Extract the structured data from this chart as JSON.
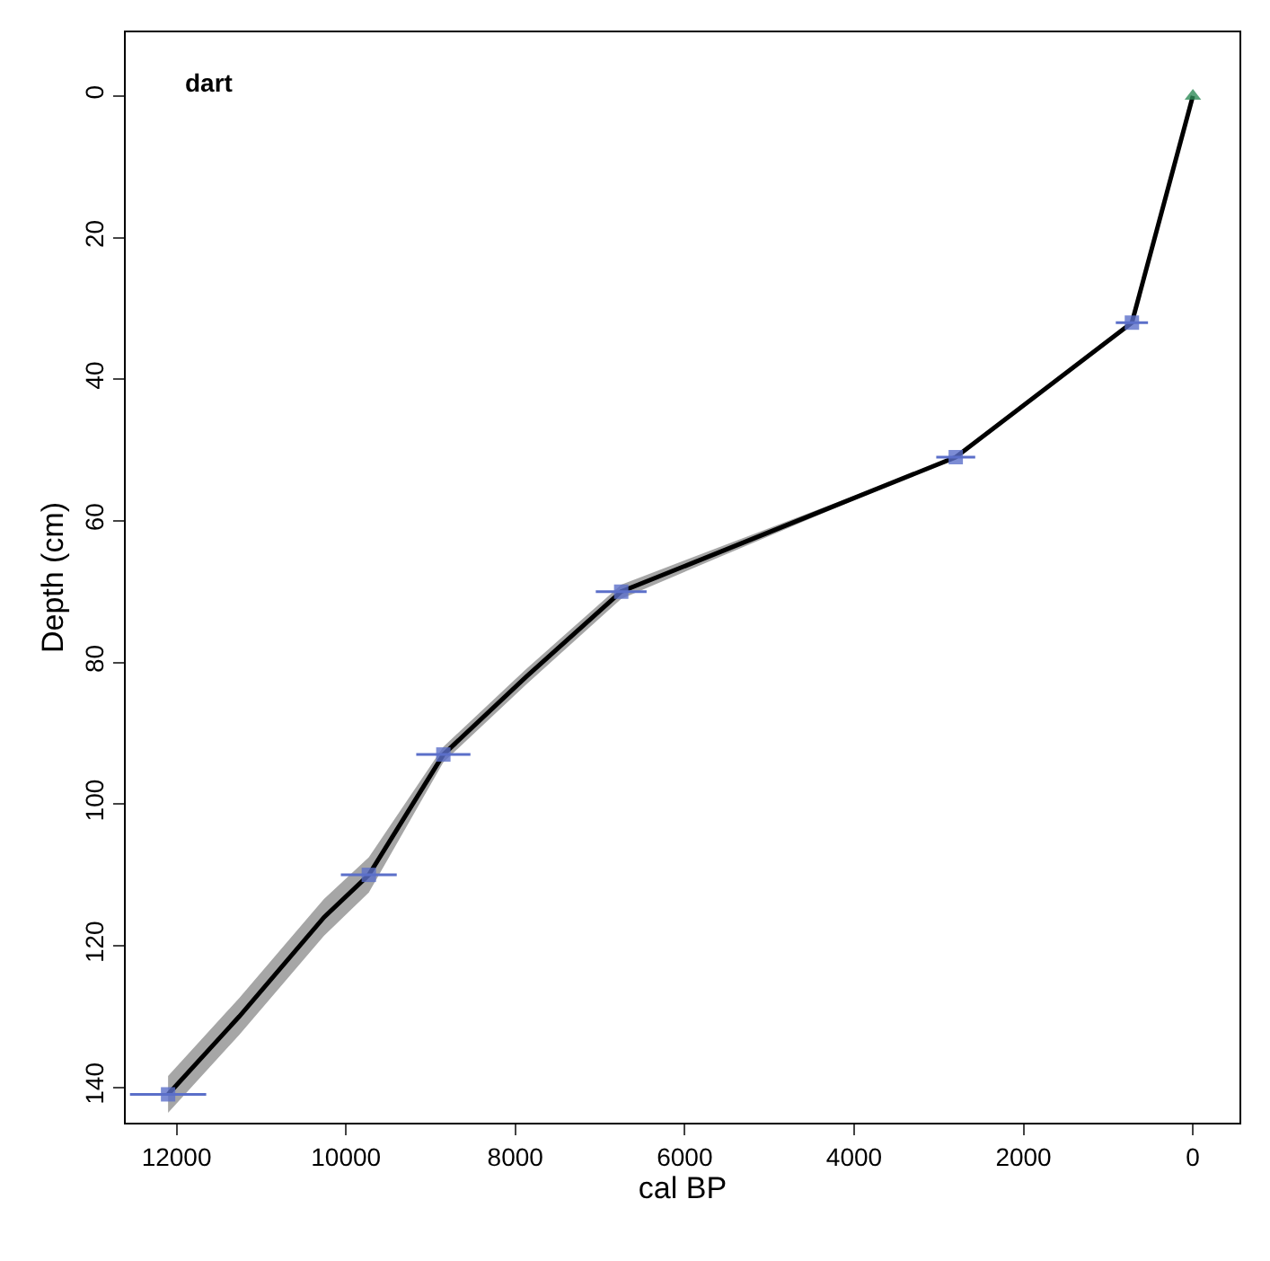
{
  "chart_data": {
    "type": "line",
    "xlabel": "cal BP",
    "ylabel": "Depth (cm)",
    "annotations": [
      "dart"
    ],
    "xlim": [
      12600,
      -550
    ],
    "ylim": [
      145,
      -9
    ],
    "xticks": [
      0,
      2000,
      4000,
      6000,
      8000,
      10000,
      12000
    ],
    "yticks": [
      0,
      20,
      40,
      60,
      80,
      100,
      120,
      140
    ],
    "series": [
      {
        "color": "#000000",
        "marker": "none",
        "x": [
          0,
          720,
          2800,
          6750,
          7870,
          8850,
          9730,
          10260,
          11260,
          12100
        ],
        "values": [
          0,
          32,
          51,
          70,
          82,
          93,
          110,
          116,
          130,
          141
        ],
        "lower": [
          0,
          32,
          51,
          69,
          80.9,
          91.9,
          107.5,
          113.4,
          127.4,
          138.4
        ],
        "upper": [
          0,
          32,
          51,
          71,
          83.1,
          94.1,
          112.5,
          118.6,
          132.6,
          143.6
        ]
      },
      {
        "type": "scatter",
        "color": "#5b6fc9",
        "marker": "square",
        "x": [
          720,
          2800,
          6750,
          8850,
          9730,
          12100
        ],
        "values": [
          32,
          51,
          70,
          93,
          110,
          141
        ],
        "xerrors": [
          190,
          230,
          300,
          320,
          330,
          450
        ]
      },
      {
        "type": "scatter",
        "color": "#2e8b57",
        "marker": "triangle",
        "x": [
          0
        ],
        "values": [
          0
        ]
      }
    ]
  }
}
